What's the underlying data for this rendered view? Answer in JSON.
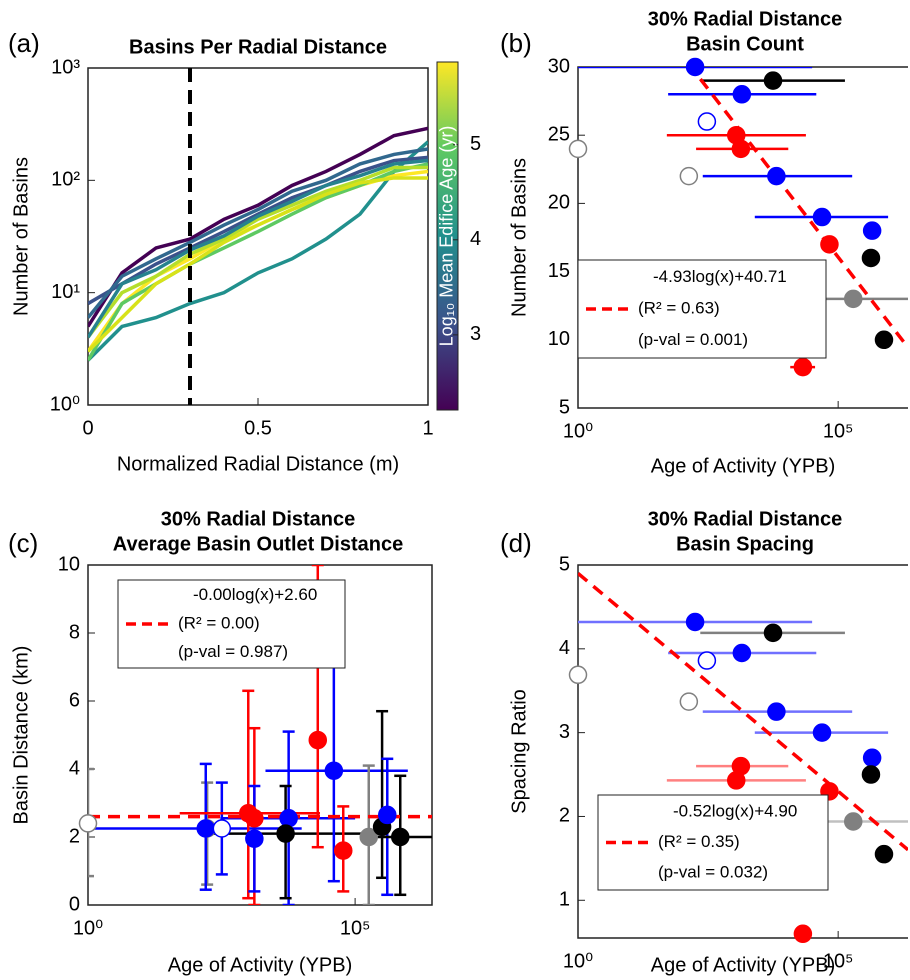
{
  "chart_data": [
    {
      "type": "line",
      "panel_label": "(a)",
      "title": [
        "Basins Per Radial Distance"
      ],
      "xlabel": "Normalized Radial Distance (m)",
      "ylabel": "Number of Basins",
      "log_y": true,
      "xlim": [
        0,
        1
      ],
      "ylim": [
        1,
        1000
      ],
      "xticks": [
        0,
        0.5,
        1
      ],
      "yticks": [
        {
          "value": 1,
          "label": "10⁰"
        },
        {
          "value": 10,
          "label": "10¹"
        },
        {
          "value": 100,
          "label": "10²"
        },
        {
          "value": 1000,
          "label": "10³"
        }
      ],
      "x": [
        0,
        0.1,
        0.2,
        0.3,
        0.4,
        0.5,
        0.6,
        0.7,
        0.8,
        0.9,
        1
      ],
      "series": [
        {
          "color": "#440154",
          "values": [
            5,
            15,
            25,
            30,
            45,
            60,
            90,
            120,
            170,
            250,
            290
          ]
        },
        {
          "color": "#21908d",
          "values": [
            2.5,
            5,
            6,
            8,
            10,
            15,
            20,
            30,
            50,
            120,
            220
          ]
        },
        {
          "color": "#fde725",
          "values": [
            3,
            8,
            14,
            20,
            30,
            40,
            55,
            70,
            90,
            110,
            120
          ]
        },
        {
          "color": "#3b528b",
          "values": [
            8,
            12,
            18,
            25,
            35,
            50,
            70,
            90,
            120,
            150,
            160
          ]
        },
        {
          "color": "#5ec962",
          "values": [
            2.5,
            8,
            12,
            18,
            25,
            35,
            50,
            70,
            90,
            120,
            140
          ]
        },
        {
          "color": "#b5de2b",
          "values": [
            4,
            10,
            14,
            22,
            30,
            45,
            60,
            80,
            100,
            130,
            130
          ]
        },
        {
          "color": "#31688e",
          "values": [
            6,
            14,
            20,
            28,
            40,
            55,
            80,
            100,
            140,
            170,
            190
          ]
        },
        {
          "color": "#d8e219",
          "values": [
            3,
            6,
            12,
            18,
            28,
            40,
            55,
            75,
            95,
            105,
            105
          ]
        },
        {
          "color": "#26828e",
          "values": [
            4,
            12,
            16,
            24,
            32,
            48,
            65,
            90,
            110,
            140,
            150
          ]
        }
      ],
      "vline": 0.3,
      "colorbar": {
        "label": "Log₁₀ Mean Edifice Age (yr)",
        "lim": [
          2.21,
          5.87
        ],
        "ticks": [
          3,
          4,
          5
        ]
      }
    },
    {
      "type": "scatter",
      "panel_label": "(b)",
      "title": [
        "30% Radial Distance",
        "Basin Count"
      ],
      "xlabel": "Age of Activity (YPB)",
      "ylabel": "Number of Basins",
      "log_x": true,
      "xlim": [
        1,
        2200000
      ],
      "ylim": [
        5,
        30
      ],
      "xticks": [
        {
          "value": 1,
          "label": "10⁰"
        },
        {
          "value": 100000,
          "label": "10⁵"
        }
      ],
      "yticks": [
        5,
        10,
        15,
        20,
        25,
        30
      ],
      "points": [
        {
          "x": 178,
          "y": 30,
          "color": "#0000ff",
          "filled": true,
          "x_low": 1,
          "x_high": 31600
        },
        {
          "x": 5600,
          "y": 29,
          "color": "#000000",
          "filled": true,
          "x_low": 224,
          "x_high": 135000
        },
        {
          "x": 1410,
          "y": 28,
          "color": "#0000ff",
          "filled": true,
          "x_low": 54,
          "x_high": 38000
        },
        {
          "x": 300,
          "y": 26,
          "color": "#0000ff",
          "filled": false
        },
        {
          "x": 1100,
          "y": 25,
          "color": "#ff0000",
          "filled": true,
          "x_low": 51,
          "x_high": 24000
        },
        {
          "x": 1350,
          "y": 24,
          "color": "#ff0000",
          "filled": true,
          "x_low": 186,
          "x_high": 11000
        },
        {
          "x": 1,
          "y": 24,
          "color": "#808080",
          "filled": false
        },
        {
          "x": 135,
          "y": 22,
          "color": "#808080",
          "filled": false
        },
        {
          "x": 6500,
          "y": 22,
          "color": "#0000ff",
          "filled": true,
          "x_low": 250,
          "x_high": 186000
        },
        {
          "x": 49000,
          "y": 19,
          "color": "#0000ff",
          "filled": true,
          "x_low": 2500,
          "x_high": 912000
        },
        {
          "x": 450000,
          "y": 18,
          "color": "#0000ff",
          "filled": true
        },
        {
          "x": 68000,
          "y": 17,
          "color": "#ff0000",
          "filled": true
        },
        {
          "x": 427000,
          "y": 16,
          "color": "#000000",
          "filled": true
        },
        {
          "x": 195000,
          "y": 13,
          "color": "#808080",
          "filled": true,
          "x_low": 18600,
          "x_high": 2200000
        },
        {
          "x": 760000,
          "y": 10,
          "color": "#000000",
          "filled": true
        },
        {
          "x": 21000,
          "y": 8,
          "color": "#ff0000",
          "filled": true,
          "x_low": 12000,
          "x_high": 36000
        }
      ],
      "fit": {
        "slope": -4.93,
        "intercept": 40.71,
        "color": "#ff0000",
        "legend": [
          "-4.93log(x)+40.71",
          "(R² = 0.63)",
          "(p-val = 0.001)"
        ]
      }
    },
    {
      "type": "scatter",
      "panel_label": "(c)",
      "title": [
        "30% Radial Distance",
        "Average  Basin Outlet Distance"
      ],
      "xlabel": "Age of Activity (YPB)",
      "ylabel": "Basin Distance (km)",
      "log_x": true,
      "xlim": [
        1,
        2750000
      ],
      "ylim": [
        0,
        10
      ],
      "xticks": [
        {
          "value": 1,
          "label": "10⁰"
        },
        {
          "value": 100000,
          "label": "10⁵"
        }
      ],
      "yticks": [
        0,
        2,
        4,
        6,
        8,
        10
      ],
      "points": [
        {
          "x": 1,
          "y": 2.4,
          "color": "#808080",
          "filled": false,
          "y_low": 0.85,
          "y_high": 4.0
        },
        {
          "x": 170,
          "y": 2.25,
          "color": "#808080",
          "filled": false,
          "y_low": 0.6,
          "y_high": 3.6
        },
        {
          "x": 160,
          "y": 2.25,
          "color": "#0000ff",
          "filled": true,
          "y_low": 0.45,
          "y_high": 4.15,
          "x_low": 1,
          "x_high": 10000
        },
        {
          "x": 320,
          "y": 2.25,
          "color": "#0000ff",
          "filled": false,
          "y_low": 0.9,
          "y_high": 3.6
        },
        {
          "x": 1000,
          "y": 2.7,
          "color": "#ff0000",
          "filled": true,
          "y_low": 0.2,
          "y_high": 6.3,
          "x_low": 52,
          "x_high": 22000
        },
        {
          "x": 1300,
          "y": 2.55,
          "color": "#ff0000",
          "filled": true,
          "y_low": 0,
          "y_high": 5.2
        },
        {
          "x": 1300,
          "y": 1.95,
          "color": "#0000ff",
          "filled": true,
          "y_low": 0.4,
          "y_high": 3.5
        },
        {
          "x": 5700,
          "y": 2.55,
          "color": "#0000ff",
          "filled": true,
          "y_low": 0,
          "y_high": 5.1,
          "x_low": 300,
          "x_high": 100000
        },
        {
          "x": 5000,
          "y": 2.1,
          "color": "#000000",
          "filled": true,
          "y_low": 0.2,
          "y_high": 3.5,
          "x_low": 220,
          "x_high": 130000
        },
        {
          "x": 20000,
          "y": 4.85,
          "color": "#ff0000",
          "filled": true,
          "y_low": 1.7,
          "y_high": 10
        },
        {
          "x": 40000,
          "y": 3.95,
          "color": "#0000ff",
          "filled": true,
          "y_low": 0.7,
          "y_high": 7.9,
          "x_low": 2100,
          "x_high": 970000
        },
        {
          "x": 60000,
          "y": 1.6,
          "color": "#ff0000",
          "filled": true,
          "y_low": 0.4,
          "y_high": 2.9
        },
        {
          "x": 180000,
          "y": 2.0,
          "color": "#808080",
          "filled": true,
          "y_low": 0,
          "y_high": 4.1
        },
        {
          "x": 320000,
          "y": 2.3,
          "color": "#000000",
          "filled": true,
          "y_low": 0.8,
          "y_high": 5.7
        },
        {
          "x": 400000,
          "y": 2.65,
          "color": "#0000ff",
          "filled": true,
          "y_low": 0.3,
          "y_high": 4.3
        },
        {
          "x": 700000,
          "y": 2.0,
          "color": "#000000",
          "filled": true,
          "y_low": 0.3,
          "y_high": 3.8,
          "x_low": 200000,
          "x_high": 2750000
        }
      ],
      "fit": {
        "slope": -0.0,
        "intercept": 2.6,
        "color": "#ff0000",
        "legend": [
          "-0.00log(x)+2.60",
          "(R² = 0.00)",
          "(p-val = 0.987)"
        ]
      }
    },
    {
      "type": "scatter",
      "panel_label": "(d)",
      "title": [
        "30% Radial Distance",
        "Basin Spacing"
      ],
      "xlabel": "Age of Activity (YPB)",
      "ylabel": "Spacing Ratio",
      "log_x": true,
      "xlim": [
        1,
        2200000
      ],
      "ylim": [
        0.55,
        5
      ],
      "xticks": [
        {
          "value": 1,
          "label": "10⁰"
        },
        {
          "value": 100000,
          "label": "10⁵"
        }
      ],
      "yticks": [
        1,
        2,
        3,
        4,
        5
      ],
      "points": [
        {
          "x": 178,
          "y": 4.32,
          "color": "#0000ff",
          "filled": true,
          "bar_color": "#7070ff",
          "x_low": 1,
          "x_high": 31600
        },
        {
          "x": 5600,
          "y": 4.19,
          "color": "#000000",
          "filled": true,
          "bar_color": "#808080",
          "x_low": 224,
          "x_high": 135000
        },
        {
          "x": 1410,
          "y": 3.95,
          "color": "#0000ff",
          "filled": true,
          "bar_color": "#7070ff",
          "x_low": 54,
          "x_high": 38000
        },
        {
          "x": 300,
          "y": 3.86,
          "color": "#0000ff",
          "filled": false
        },
        {
          "x": 1,
          "y": 3.69,
          "color": "#808080",
          "filled": false
        },
        {
          "x": 135,
          "y": 3.37,
          "color": "#808080",
          "filled": false
        },
        {
          "x": 6500,
          "y": 3.25,
          "color": "#0000ff",
          "filled": true,
          "bar_color": "#7070ff",
          "x_low": 250,
          "x_high": 186000
        },
        {
          "x": 49000,
          "y": 3.0,
          "color": "#0000ff",
          "filled": true,
          "bar_color": "#7070ff",
          "x_low": 2500,
          "x_high": 912000
        },
        {
          "x": 1350,
          "y": 2.6,
          "color": "#ff0000",
          "filled": true,
          "bar_color": "#ff8080",
          "x_low": 186,
          "x_high": 11000
        },
        {
          "x": 1100,
          "y": 2.43,
          "color": "#ff0000",
          "filled": true,
          "bar_color": "#ff8080",
          "x_low": 51,
          "x_high": 24000
        },
        {
          "x": 450000,
          "y": 2.7,
          "color": "#0000ff",
          "filled": true
        },
        {
          "x": 427000,
          "y": 2.5,
          "color": "#000000",
          "filled": true
        },
        {
          "x": 68000,
          "y": 2.3,
          "color": "#ff0000",
          "filled": true
        },
        {
          "x": 195000,
          "y": 1.94,
          "color": "#808080",
          "filled": true,
          "bar_color": "#c0c0c0",
          "x_low": 18600,
          "x_high": 2200000
        },
        {
          "x": 760000,
          "y": 1.55,
          "color": "#000000",
          "filled": true
        },
        {
          "x": 21000,
          "y": 0.6,
          "color": "#ff0000",
          "filled": true
        }
      ],
      "fit": {
        "slope": -0.52,
        "intercept": 4.9,
        "color": "#ff0000",
        "legend": [
          "-0.52log(x)+4.90",
          "(R² = 0.35)",
          "(p-val = 0.032)"
        ]
      }
    }
  ]
}
